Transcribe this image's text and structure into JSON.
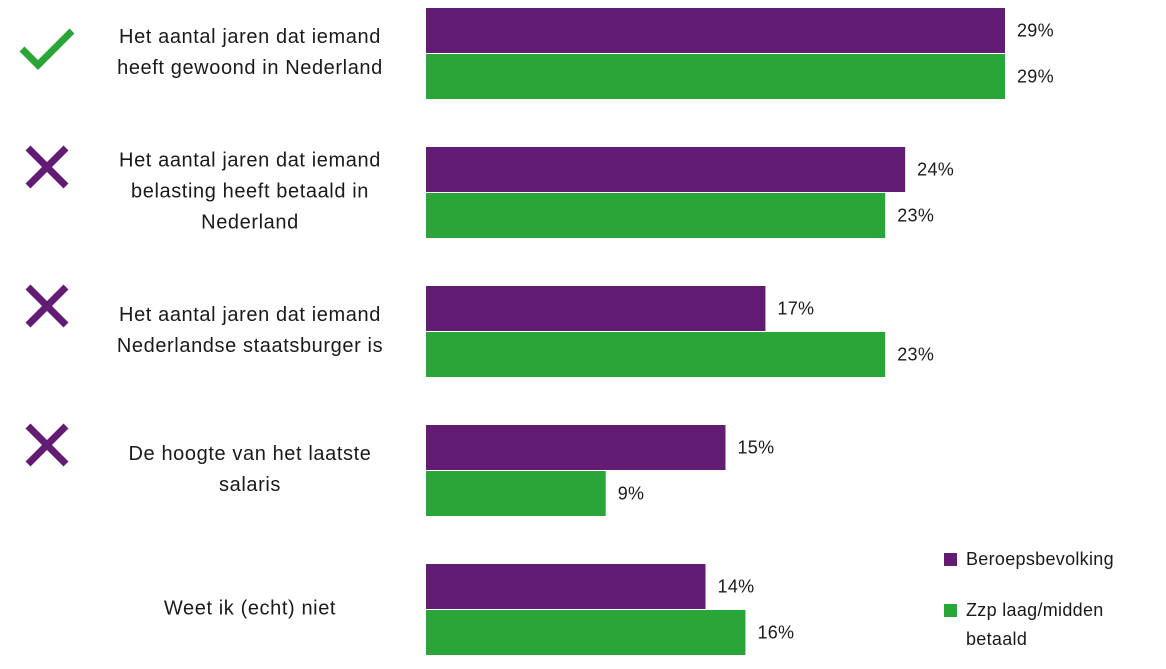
{
  "chart_data": {
    "type": "bar",
    "orientation": "horizontal",
    "categories": [
      [
        "Het aantal jaren dat iemand",
        "heeft gewoond in Nederland"
      ],
      [
        "Het aantal jaren dat iemand",
        "belasting heeft betaald in",
        "Nederland"
      ],
      [
        "Het aantal jaren dat iemand",
        "Nederlandse staatsburger is"
      ],
      [
        "De hoogte van het laatste",
        "salaris"
      ],
      [
        "Weet ik (echt) niet"
      ]
    ],
    "markers": [
      "check-icon",
      "cross-icon",
      "cross-icon",
      "cross-icon",
      ""
    ],
    "series": [
      {
        "name": "Beroepsbevolking",
        "color": "#621c74",
        "values": [
          29,
          24,
          17,
          15,
          14
        ],
        "labels": [
          "29%",
          "24%",
          "17%",
          "15%",
          "14%"
        ]
      },
      {
        "name": "Zzp laag/midden betaald",
        "legend_lines": [
          "Zzp laag/midden",
          "betaald"
        ],
        "color": "#2aa538",
        "values": [
          29,
          23,
          23,
          9,
          16
        ],
        "labels": [
          "29%",
          "23%",
          "23%",
          "9%",
          "16%"
        ]
      }
    ],
    "xlim": [
      0,
      29
    ],
    "grid": false,
    "legend_position": "bottom-right"
  }
}
